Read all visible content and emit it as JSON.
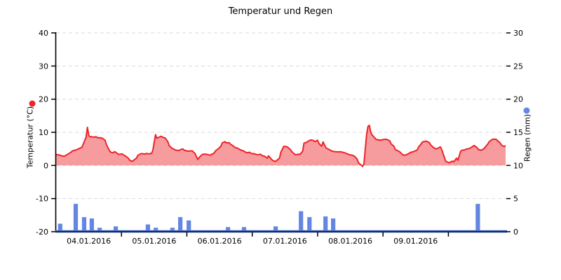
{
  "title": "Temperatur und Regen",
  "colors": {
    "temperature_line": "#ee2428",
    "temperature_fill": "rgba(238,36,40,0.45)",
    "rain_bar": "#6286e2",
    "axis_line": "#000000",
    "baseline": "#102a66",
    "grid": "#d9d9d9"
  },
  "left_axis": {
    "label": "Temperatur (°C)",
    "min": -20,
    "max": 40,
    "ticks": [
      40,
      30,
      20,
      10,
      0,
      -10,
      -20
    ]
  },
  "right_axis": {
    "label": "Regen (mm)",
    "min": 0,
    "max": 30,
    "ticks": [
      30,
      25,
      20,
      15,
      10,
      5,
      0
    ]
  },
  "chart_data": {
    "type": "combo",
    "title": "Temperatur und Regen",
    "x_unit": "hours since 04.01.2016 00:00",
    "span_hours": 165,
    "grid": "dashed horizontal",
    "x_date_labels": [
      {
        "t": 12,
        "text": "04.01.2016"
      },
      {
        "t": 36,
        "text": "05.01.2016"
      },
      {
        "t": 60,
        "text": "06.01.2016"
      },
      {
        "t": 84,
        "text": "07.01.2016"
      },
      {
        "t": 108,
        "text": "08.01.2016"
      },
      {
        "t": 132,
        "text": "09.01.2016"
      }
    ],
    "x_boundary_ticks": [
      24,
      48,
      72,
      96,
      120,
      144
    ],
    "left_ylim": [
      -20,
      40
    ],
    "right_ylim": [
      0,
      30
    ],
    "series": [
      {
        "name": "Temperatur (°C)",
        "type": "area",
        "axis": "left",
        "points": [
          [
            0,
            3.3
          ],
          [
            1,
            3.2
          ],
          [
            2,
            2.9
          ],
          [
            3,
            2.8
          ],
          [
            3.5,
            3
          ],
          [
            4.5,
            3.5
          ],
          [
            5.5,
            4
          ],
          [
            6,
            4.4
          ],
          [
            7,
            4.6
          ],
          [
            8,
            4.9
          ],
          [
            8.5,
            5.1
          ],
          [
            9.5,
            5.5
          ],
          [
            10,
            6.5
          ],
          [
            11,
            8.5
          ],
          [
            11.5,
            11.5
          ],
          [
            12,
            9
          ],
          [
            12.5,
            8.6
          ],
          [
            13,
            8.7
          ],
          [
            14,
            8.5
          ],
          [
            14.5,
            8.7
          ],
          [
            15.5,
            8.3
          ],
          [
            16,
            8.4
          ],
          [
            17,
            8.2
          ],
          [
            18,
            7.6
          ],
          [
            18.5,
            6.2
          ],
          [
            19.5,
            4.6
          ],
          [
            20,
            4
          ],
          [
            21,
            3.8
          ],
          [
            21.5,
            4.2
          ],
          [
            22.5,
            3.6
          ],
          [
            23,
            3.3
          ],
          [
            24,
            3.5
          ],
          [
            24.5,
            3.3
          ],
          [
            25.5,
            2.8
          ],
          [
            26.5,
            2.2
          ],
          [
            27,
            1.6
          ],
          [
            28,
            1.2
          ],
          [
            28.5,
            1.6
          ],
          [
            29.5,
            2.2
          ],
          [
            30,
            3
          ],
          [
            31,
            3.5
          ],
          [
            31.5,
            3.6
          ],
          [
            32.5,
            3.4
          ],
          [
            33,
            3.6
          ],
          [
            34,
            3.5
          ],
          [
            35,
            3.6
          ],
          [
            35.5,
            4.5
          ],
          [
            36.5,
            9.3
          ],
          [
            37,
            8.2
          ],
          [
            38,
            8.6
          ],
          [
            38.5,
            8.8
          ],
          [
            39.5,
            8.4
          ],
          [
            40,
            8.3
          ],
          [
            41,
            7.2
          ],
          [
            41.5,
            6
          ],
          [
            42.5,
            5.2
          ],
          [
            43.5,
            4.8
          ],
          [
            44,
            4.6
          ],
          [
            45,
            4.5
          ],
          [
            45.5,
            4.7
          ],
          [
            46.5,
            5
          ],
          [
            47,
            4.6
          ],
          [
            48,
            4.4
          ],
          [
            48.5,
            4.3
          ],
          [
            49.5,
            4.4
          ],
          [
            50,
            4.4
          ],
          [
            51,
            3.6
          ],
          [
            52,
            1.8
          ],
          [
            52.5,
            2.4
          ],
          [
            53.5,
            3.2
          ],
          [
            54,
            3.4
          ],
          [
            55,
            3.4
          ],
          [
            55.5,
            3.3
          ],
          [
            56.5,
            3.1
          ],
          [
            57,
            3.3
          ],
          [
            58,
            3.7
          ],
          [
            58.5,
            4.4
          ],
          [
            59.5,
            5
          ],
          [
            60.5,
            5.8
          ],
          [
            61,
            6.8
          ],
          [
            62,
            7.2
          ],
          [
            62.5,
            6.8
          ],
          [
            63.5,
            6.9
          ],
          [
            64,
            6.4
          ],
          [
            65,
            5.9
          ],
          [
            65.5,
            5.5
          ],
          [
            66.5,
            5.2
          ],
          [
            67,
            5
          ],
          [
            68,
            4.6
          ],
          [
            69,
            4.3
          ],
          [
            69.5,
            4
          ],
          [
            70.5,
            3.8
          ],
          [
            71,
            4
          ],
          [
            72,
            3.5
          ],
          [
            72.5,
            3.6
          ],
          [
            73.5,
            3.3
          ],
          [
            74,
            3.2
          ],
          [
            75,
            3.4
          ],
          [
            75.5,
            3
          ],
          [
            76.5,
            2.8
          ],
          [
            77.5,
            2.2
          ],
          [
            78,
            2.9
          ],
          [
            79,
            1.9
          ],
          [
            79.5,
            1.5
          ],
          [
            80.5,
            1.2
          ],
          [
            81,
            1.5
          ],
          [
            82,
            2.2
          ],
          [
            82.5,
            4
          ],
          [
            83.5,
            5.7
          ],
          [
            84,
            5.8
          ],
          [
            85,
            5.5
          ],
          [
            86,
            4.8
          ],
          [
            86.5,
            4.2
          ],
          [
            87.5,
            3.4
          ],
          [
            88,
            3.2
          ],
          [
            89,
            3.4
          ],
          [
            89.5,
            3.3
          ],
          [
            90.5,
            4.3
          ],
          [
            91,
            6.7
          ],
          [
            92,
            7
          ],
          [
            92.5,
            7.3
          ],
          [
            93.5,
            7.7
          ],
          [
            94.5,
            7.5
          ],
          [
            95,
            7.2
          ],
          [
            96,
            7.6
          ],
          [
            96.5,
            6.6
          ],
          [
            97.5,
            5.8
          ],
          [
            98,
            7.1
          ],
          [
            99,
            5.4
          ],
          [
            99.5,
            5.1
          ],
          [
            100.5,
            4.7
          ],
          [
            101,
            4.4
          ],
          [
            102,
            4.2
          ],
          [
            103,
            4.1
          ],
          [
            104.5,
            4.1
          ],
          [
            105,
            4
          ],
          [
            106,
            3.8
          ],
          [
            106.5,
            3.6
          ],
          [
            107.5,
            3.3
          ],
          [
            108,
            3.2
          ],
          [
            109,
            3
          ],
          [
            109.5,
            2.8
          ],
          [
            110.5,
            1.9
          ],
          [
            111,
            0.8
          ],
          [
            112,
            0.1
          ],
          [
            112.5,
            -0.3
          ],
          [
            113,
            0.5
          ],
          [
            113.5,
            5
          ],
          [
            114,
            9.5
          ],
          [
            114.5,
            11.8
          ],
          [
            115,
            12.1
          ],
          [
            115.5,
            10
          ],
          [
            116,
            9.2
          ],
          [
            117,
            8.3
          ],
          [
            117.5,
            7.8
          ],
          [
            118.5,
            7.7
          ],
          [
            119,
            7.6
          ],
          [
            120,
            7.8
          ],
          [
            121,
            7.9
          ],
          [
            121.5,
            7.8
          ],
          [
            122.5,
            7.4
          ],
          [
            123,
            6.5
          ],
          [
            124,
            5.8
          ],
          [
            124.5,
            4.8
          ],
          [
            125.5,
            4.4
          ],
          [
            126,
            4.2
          ],
          [
            127,
            3.4
          ],
          [
            127.5,
            3.1
          ],
          [
            128.5,
            3.2
          ],
          [
            129.5,
            3.6
          ],
          [
            130,
            3.9
          ],
          [
            131,
            4.1
          ],
          [
            131.5,
            4.3
          ],
          [
            132.5,
            4.6
          ],
          [
            133,
            5.5
          ],
          [
            134,
            6.5
          ],
          [
            134.5,
            7.1
          ],
          [
            135.5,
            7.3
          ],
          [
            136,
            7.3
          ],
          [
            137,
            6.9
          ],
          [
            137.5,
            6.2
          ],
          [
            138.5,
            5.4
          ],
          [
            139.5,
            5
          ],
          [
            140,
            5.1
          ],
          [
            141,
            5.6
          ],
          [
            141.5,
            4.9
          ],
          [
            142.5,
            2.5
          ],
          [
            143,
            1.3
          ],
          [
            144,
            0.9
          ],
          [
            144.5,
            0.9
          ],
          [
            145.5,
            1.3
          ],
          [
            146,
            1.1
          ],
          [
            147,
            2.2
          ],
          [
            147.5,
            1.6
          ],
          [
            148.5,
            4.3
          ],
          [
            149,
            4.6
          ],
          [
            150,
            4.7
          ],
          [
            150.5,
            4.9
          ],
          [
            151.5,
            5.1
          ],
          [
            152,
            5.2
          ],
          [
            153,
            5.8
          ],
          [
            153.5,
            6
          ],
          [
            154.5,
            5.4
          ],
          [
            155,
            4.8
          ],
          [
            156,
            4.6
          ],
          [
            157,
            5
          ],
          [
            157.5,
            5.5
          ],
          [
            158.5,
            6.5
          ],
          [
            159,
            7.2
          ],
          [
            160,
            7.8
          ],
          [
            160.5,
            7.9
          ],
          [
            161.5,
            7.9
          ],
          [
            162,
            7.5
          ],
          [
            163,
            6.8
          ],
          [
            163.5,
            6.1
          ],
          [
            164.5,
            5.7
          ],
          [
            165,
            6
          ]
        ]
      },
      {
        "name": "Regen (mm)",
        "type": "bar",
        "axis": "right",
        "bar_width_hours": 1.6,
        "points": [
          [
            1.5,
            1.2
          ],
          [
            7.2,
            4.2
          ],
          [
            10.3,
            2.2
          ],
          [
            13.1,
            2.0
          ],
          [
            16,
            0.6
          ],
          [
            21.9,
            0.8
          ],
          [
            33.7,
            1.1
          ],
          [
            36.6,
            0.6
          ],
          [
            42.7,
            0.6
          ],
          [
            45.6,
            2.2
          ],
          [
            48.7,
            1.7
          ],
          [
            63.1,
            0.7
          ],
          [
            69,
            0.7
          ],
          [
            80.6,
            0.8
          ],
          [
            89.9,
            3.1
          ],
          [
            93,
            2.2
          ],
          [
            98.9,
            2.3
          ],
          [
            101.7,
            2.0
          ],
          [
            154.8,
            4.2
          ]
        ]
      }
    ]
  }
}
